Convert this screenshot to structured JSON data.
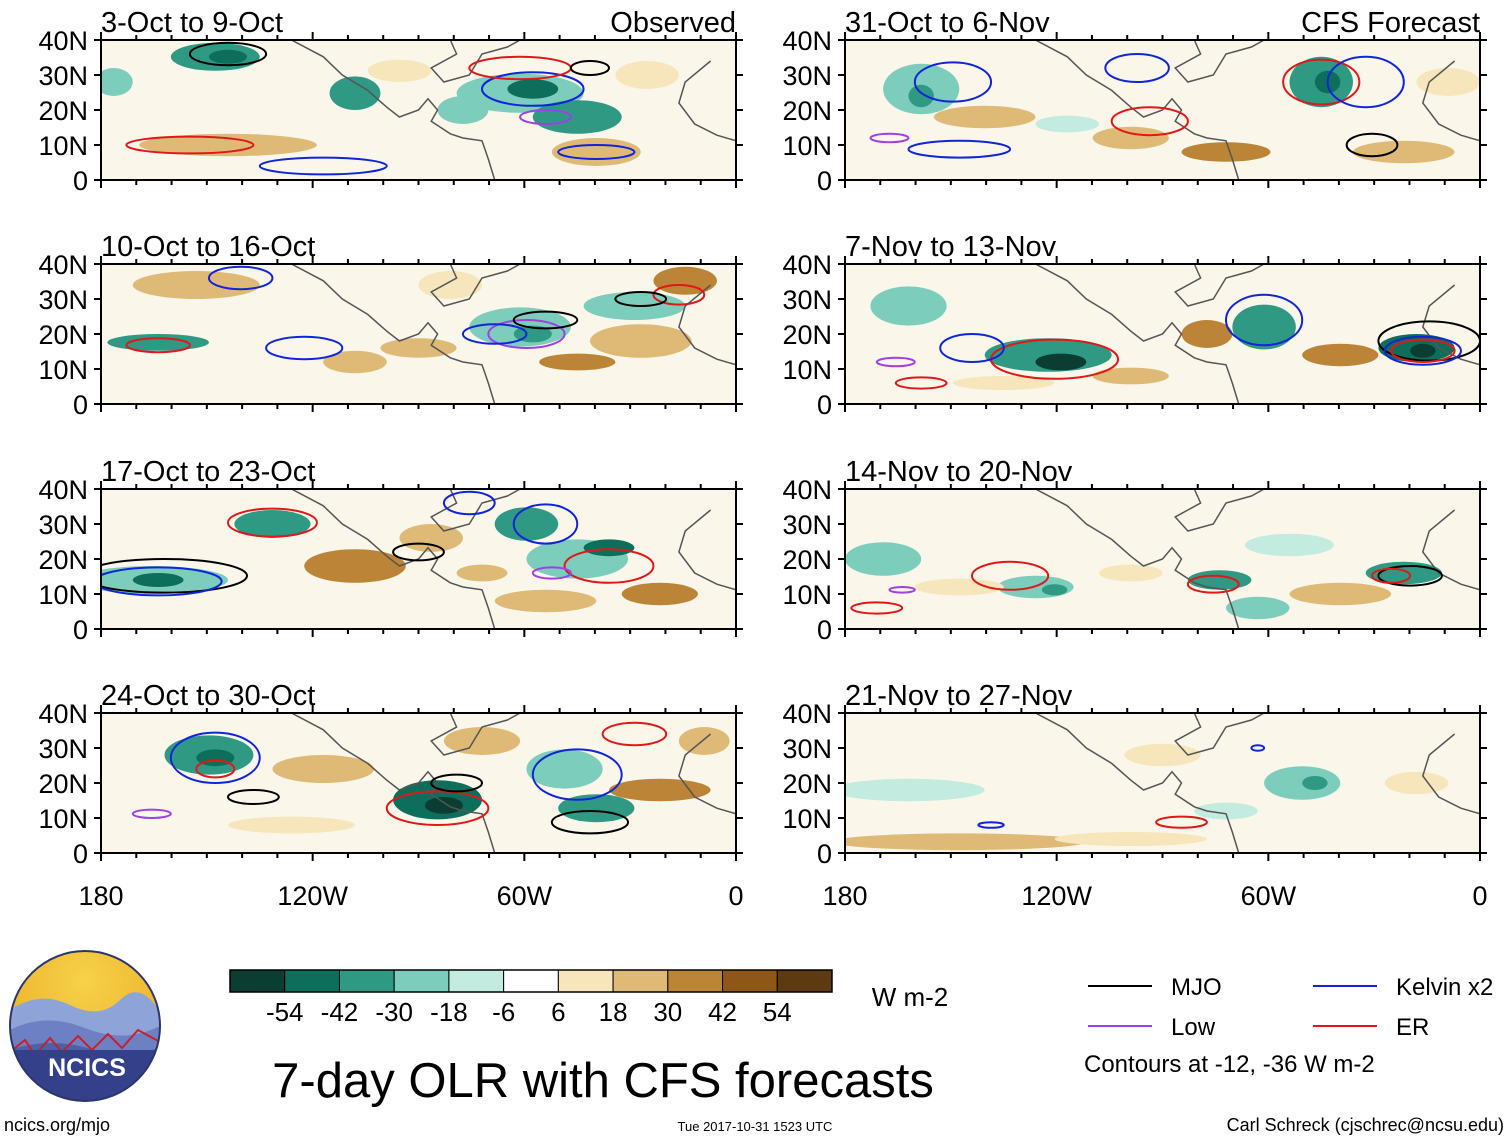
{
  "chart_data": {
    "type": "heatmap",
    "title": "7-day OLR with CFS forecasts",
    "units": "W m-2",
    "column_labels": {
      "observed": "Observed",
      "forecast": "CFS Forecast"
    },
    "y_ticks": [
      "40N",
      "30N",
      "20N",
      "10N",
      "0"
    ],
    "x_ticks": [
      "180",
      "120W",
      "60W",
      "0"
    ],
    "xlim": [
      -180,
      0
    ],
    "ylim": [
      0,
      40
    ],
    "panels": [
      {
        "column": "observed",
        "period": "3-Oct to 9-Oct"
      },
      {
        "column": "observed",
        "period": "10-Oct to 16-Oct"
      },
      {
        "column": "observed",
        "period": "17-Oct to 23-Oct"
      },
      {
        "column": "observed",
        "period": "24-Oct to 30-Oct"
      },
      {
        "column": "forecast",
        "period": "31-Oct to 6-Nov"
      },
      {
        "column": "forecast",
        "period": "7-Nov to 13-Nov"
      },
      {
        "column": "forecast",
        "period": "14-Nov to 20-Nov"
      },
      {
        "column": "forecast",
        "period": "21-Nov to 27-Nov"
      }
    ],
    "colorbar": {
      "labels": [
        "-54",
        "-42",
        "-30",
        "-18",
        "-6",
        "6",
        "18",
        "30",
        "42",
        "54"
      ],
      "colors": [
        "#0b3d33",
        "#0e6e5c",
        "#2f9984",
        "#7ccdbb",
        "#c3ebe0",
        "#ffffff",
        "#f7e6bc",
        "#dfba77",
        "#bb8436",
        "#8e5718",
        "#5e3a12"
      ]
    },
    "legend": [
      {
        "label": "MJO",
        "color": "#000000"
      },
      {
        "label": "Kelvin x2",
        "color": "#1025d8"
      },
      {
        "label": "Low",
        "color": "#a040e0"
      },
      {
        "label": "ER",
        "color": "#e01818"
      }
    ],
    "contour_note": "Contours at -12, -36 W m-2"
  },
  "footer": {
    "logo_text": "NCICS",
    "site": "ncics.org/mjo",
    "timestamp": "Tue 2017-10-31 1523 UTC",
    "author": "Carl Schreck (cjschrec@ncsu.edu)"
  }
}
